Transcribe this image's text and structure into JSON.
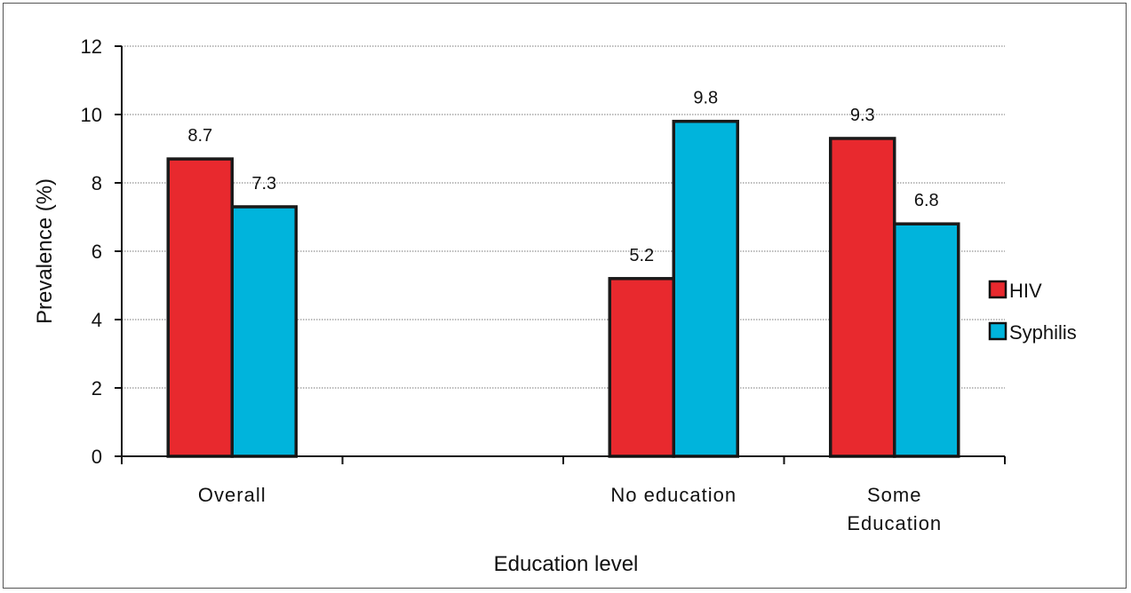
{
  "chart_data": {
    "type": "bar",
    "categories": [
      {
        "lines": [
          "Overall"
        ]
      },
      {
        "lines": [
          ""
        ]
      },
      {
        "lines": [
          "No education"
        ]
      },
      {
        "lines": [
          "Some",
          "Education"
        ]
      }
    ],
    "series": [
      {
        "name": "HIV",
        "color": "#e8292e",
        "values": [
          8.7,
          null,
          5.2,
          9.3
        ]
      },
      {
        "name": "Syphilis",
        "color": "#00b4dc",
        "values": [
          7.3,
          null,
          9.8,
          6.8
        ]
      }
    ],
    "xlabel": "Education level",
    "ylabel": "Prevalence (%)",
    "ylim": [
      0,
      12
    ],
    "yticks": [
      0,
      2,
      4,
      6,
      8,
      10,
      12
    ],
    "grid": true,
    "legend_position": "right"
  }
}
